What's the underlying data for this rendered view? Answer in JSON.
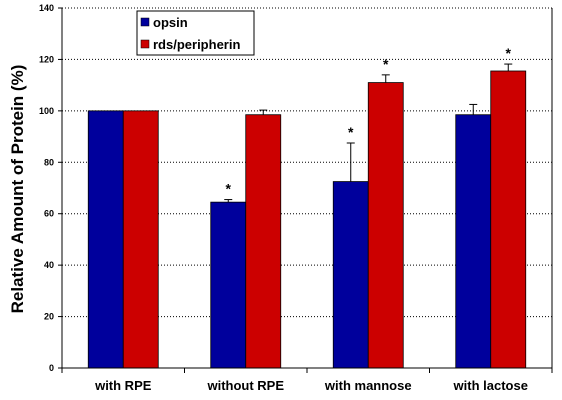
{
  "chart_data": {
    "type": "bar",
    "title": "",
    "xlabel": "",
    "ylabel": "Relative Amount of Protein (%)",
    "ylim": [
      0,
      140
    ],
    "yticks": [
      0,
      20,
      40,
      60,
      80,
      100,
      120,
      140
    ],
    "grid": "horizontal dotted",
    "legend_position": "top-left",
    "categories": [
      "with RPE",
      "without RPE",
      "with mannose",
      "with lactose"
    ],
    "series": [
      {
        "name": "opsin",
        "color": "#00009c",
        "values": [
          100,
          64.5,
          72.5,
          98.5
        ],
        "errors": [
          0,
          1,
          15,
          4
        ],
        "significant": [
          false,
          true,
          true,
          false
        ]
      },
      {
        "name": "rds/peripherin",
        "color": "#cc0000",
        "values": [
          100,
          98.5,
          111,
          115.5
        ],
        "errors": [
          0,
          1.8,
          3,
          2.7
        ],
        "significant": [
          false,
          false,
          true,
          true
        ]
      }
    ],
    "significance_marker": "*"
  }
}
